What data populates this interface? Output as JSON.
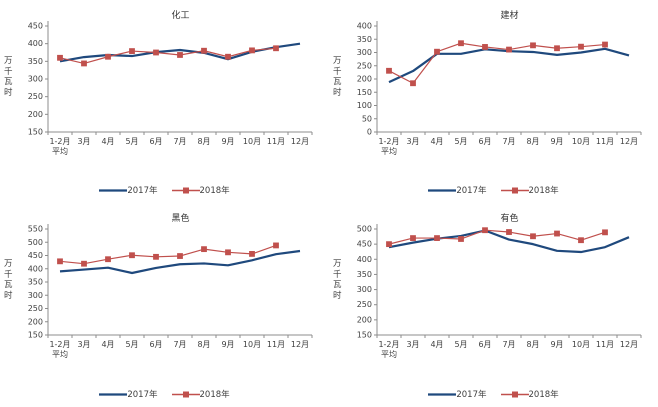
{
  "page": {
    "background": "#ffffff"
  },
  "colors": {
    "series_2017": "#1F497D",
    "series_2018": "#C0504D",
    "axis": "#8C8C8C",
    "text": "#3F3F3F",
    "title": "#333333"
  },
  "chart_data": [
    {
      "type": "line",
      "title": "化工",
      "ylabel": "万千瓦时",
      "xlabel": "",
      "ylim": [
        150,
        450
      ],
      "ytick_step": 50,
      "grid": false,
      "legend_position": "bottom",
      "categories": [
        [
          "1-2月",
          "平均"
        ],
        [
          "3月"
        ],
        [
          "4月"
        ],
        [
          "5月"
        ],
        [
          "6月"
        ],
        [
          "7月"
        ],
        [
          "8月"
        ],
        [
          "9月"
        ],
        [
          "10月"
        ],
        [
          "11月"
        ],
        [
          "12月"
        ]
      ],
      "series": [
        {
          "name": "2017年",
          "color": "#1F497D",
          "marker": "none",
          "values": [
            350,
            362,
            368,
            365,
            376,
            382,
            374,
            356,
            377,
            390,
            400
          ]
        },
        {
          "name": "2018年",
          "color": "#C0504D",
          "marker": "square",
          "values": [
            360,
            344,
            363,
            379,
            375,
            368,
            380,
            363,
            381,
            387
          ]
        }
      ]
    },
    {
      "type": "line",
      "title": "建材",
      "ylabel": "万千瓦时",
      "xlabel": "",
      "ylim": [
        0,
        400
      ],
      "ytick_step": 50,
      "grid": false,
      "legend_position": "bottom",
      "categories": [
        [
          "1-2月",
          "平均"
        ],
        [
          "3月"
        ],
        [
          "4月"
        ],
        [
          "5月"
        ],
        [
          "6月"
        ],
        [
          "7月"
        ],
        [
          "8月"
        ],
        [
          "9月"
        ],
        [
          "10月"
        ],
        [
          "11月"
        ],
        [
          "12月"
        ]
      ],
      "series": [
        {
          "name": "2017年",
          "color": "#1F497D",
          "marker": "none",
          "values": [
            188,
            230,
            295,
            295,
            312,
            305,
            302,
            291,
            300,
            314,
            289
          ]
        },
        {
          "name": "2018年",
          "color": "#C0504D",
          "marker": "square",
          "values": [
            231,
            184,
            303,
            335,
            321,
            311,
            327,
            316,
            322,
            330
          ]
        }
      ]
    },
    {
      "type": "line",
      "title": "黑色",
      "ylabel": "万千瓦时",
      "xlabel": "",
      "ylim": [
        150,
        550
      ],
      "ytick_step": 50,
      "grid": false,
      "legend_position": "bottom",
      "categories": [
        [
          "1-2月",
          "平均"
        ],
        [
          "3月"
        ],
        [
          "4月"
        ],
        [
          "5月"
        ],
        [
          "6月"
        ],
        [
          "7月"
        ],
        [
          "8月"
        ],
        [
          "9月"
        ],
        [
          "10月"
        ],
        [
          "11月"
        ],
        [
          "12月"
        ]
      ],
      "series": [
        {
          "name": "2017年",
          "color": "#1F497D",
          "marker": "none",
          "values": [
            390,
            397,
            404,
            384,
            403,
            417,
            420,
            413,
            432,
            455,
            467
          ]
        },
        {
          "name": "2018年",
          "color": "#C0504D",
          "marker": "square",
          "values": [
            428,
            419,
            436,
            451,
            445,
            448,
            474,
            462,
            456,
            488
          ]
        }
      ]
    },
    {
      "type": "line",
      "title": "有色",
      "ylabel": "万千瓦时",
      "xlabel": "",
      "ylim": [
        150,
        500
      ],
      "ytick_step": 50,
      "grid": false,
      "legend_position": "bottom",
      "categories": [
        [
          "1-2月",
          "平均"
        ],
        [
          "3月"
        ],
        [
          "4月"
        ],
        [
          "5月"
        ],
        [
          "6月"
        ],
        [
          "7月"
        ],
        [
          "8月"
        ],
        [
          "9月"
        ],
        [
          "10月"
        ],
        [
          "11月"
        ],
        [
          "12月"
        ]
      ],
      "series": [
        {
          "name": "2017年",
          "color": "#1F497D",
          "marker": "none",
          "values": [
            440,
            455,
            468,
            477,
            495,
            465,
            450,
            428,
            424,
            440,
            473
          ]
        },
        {
          "name": "2018年",
          "color": "#C0504D",
          "marker": "square",
          "values": [
            450,
            470,
            470,
            467,
            496,
            490,
            476,
            485,
            463,
            489
          ]
        }
      ]
    }
  ]
}
